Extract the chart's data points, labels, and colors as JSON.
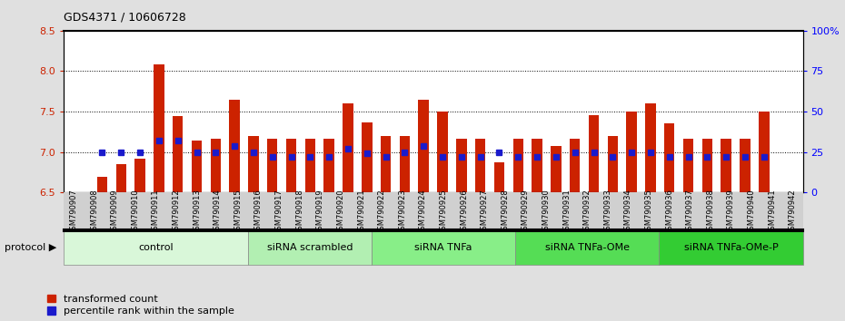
{
  "title": "GDS4371 / 10606728",
  "samples": [
    "GSM790907",
    "GSM790908",
    "GSM790909",
    "GSM790910",
    "GSM790911",
    "GSM790912",
    "GSM790913",
    "GSM790914",
    "GSM790915",
    "GSM790916",
    "GSM790917",
    "GSM790918",
    "GSM790919",
    "GSM790920",
    "GSM790921",
    "GSM790922",
    "GSM790923",
    "GSM790924",
    "GSM790925",
    "GSM790926",
    "GSM790927",
    "GSM790928",
    "GSM790929",
    "GSM790930",
    "GSM790931",
    "GSM790932",
    "GSM790933",
    "GSM790934",
    "GSM790935",
    "GSM790936",
    "GSM790937",
    "GSM790938",
    "GSM790939",
    "GSM790940",
    "GSM790941",
    "GSM790942"
  ],
  "red_values": [
    6.7,
    6.85,
    6.92,
    8.08,
    7.44,
    7.14,
    7.17,
    7.65,
    7.2,
    7.17,
    7.16,
    7.17,
    7.17,
    7.6,
    7.37,
    7.2,
    7.2,
    7.65,
    7.5,
    7.17,
    7.17,
    6.87,
    7.17,
    7.17,
    7.07,
    7.17,
    7.46,
    7.2,
    7.5,
    7.6,
    7.35,
    7.17,
    7.17,
    7.17,
    7.17,
    7.5
  ],
  "blue_percentiles": [
    25,
    25,
    25,
    32,
    32,
    25,
    25,
    29,
    25,
    22,
    22,
    22,
    22,
    27,
    24,
    22,
    25,
    29,
    22,
    22,
    22,
    25,
    22,
    22,
    22,
    25,
    25,
    22,
    25,
    25,
    22,
    22,
    22,
    22,
    22,
    22
  ],
  "groups": [
    {
      "label": "control",
      "start": 0,
      "end": 9
    },
    {
      "label": "siRNA scrambled",
      "start": 9,
      "end": 15
    },
    {
      "label": "siRNA TNFa",
      "start": 15,
      "end": 22
    },
    {
      "label": "siRNA TNFa-OMe",
      "start": 22,
      "end": 29
    },
    {
      "label": "siRNA TNFa-OMe-P",
      "start": 29,
      "end": 36
    }
  ],
  "group_colors": [
    "#d9f7d9",
    "#b2efb2",
    "#88ee88",
    "#55dd55",
    "#33cc33"
  ],
  "ylim_left": [
    6.5,
    8.5
  ],
  "ylim_right": [
    0,
    100
  ],
  "yticks_left": [
    6.5,
    7.0,
    7.5,
    8.0,
    8.5
  ],
  "yticks_right": [
    0,
    25,
    50,
    75,
    100
  ],
  "ytick_labels_right": [
    "0",
    "25",
    "50",
    "75",
    "100%"
  ],
  "bar_color_red": "#cc2200",
  "bar_color_blue": "#1a1acc",
  "bar_width": 0.55,
  "fig_bg": "#e0e0e0",
  "plot_bg": "white",
  "xticklabel_bg": "#d0d0d0"
}
